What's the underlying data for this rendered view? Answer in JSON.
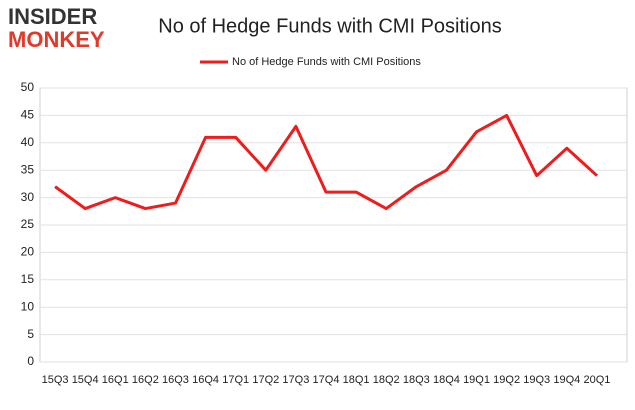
{
  "logo": {
    "line1": "INSIDER",
    "line2": "MONKEY"
  },
  "chart_data": {
    "type": "line",
    "title": "No of Hedge Funds with CMI Positions",
    "categories": [
      "15Q3",
      "15Q4",
      "16Q1",
      "16Q2",
      "16Q3",
      "16Q4",
      "17Q1",
      "17Q2",
      "17Q3",
      "17Q4",
      "18Q1",
      "18Q2",
      "18Q3",
      "18Q4",
      "19Q1",
      "19Q2",
      "19Q3",
      "19Q4",
      "20Q1"
    ],
    "series": [
      {
        "name": "No of Hedge Funds with CMI Positions",
        "color": "#ee1c1c",
        "values": [
          32,
          28,
          30,
          28,
          29,
          41,
          41,
          35,
          43,
          31,
          31,
          28,
          32,
          35,
          42,
          45,
          34,
          39,
          34
        ]
      }
    ],
    "ylim": [
      0,
      50
    ],
    "yticks": [
      0,
      5,
      10,
      15,
      20,
      25,
      30,
      35,
      40,
      45,
      50
    ],
    "grid": true,
    "legend": "top"
  }
}
